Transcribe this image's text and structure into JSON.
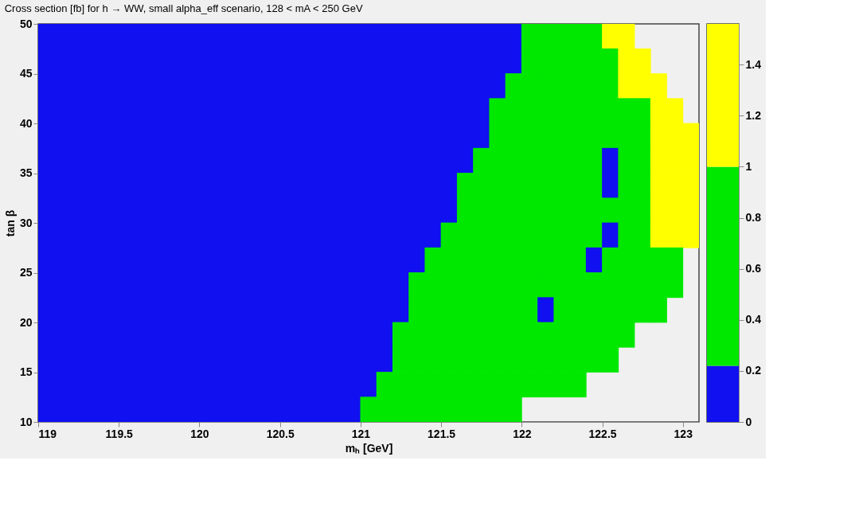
{
  "chart_data": [
    {
      "type": "scatter",
      "title": "Cross section [fb] for h → WW, small alpha_eff scenario, 128 < mA < 250 GeV",
      "xlabel": "mₕ [GeV]",
      "ylabel": "tan β",
      "marker": "square",
      "x": [
        119.05,
        119.15,
        119.25,
        119.35,
        119.45,
        119.55,
        119.65,
        119.75,
        119.85,
        119.95,
        120.05,
        120.15,
        120.25,
        120.35,
        120.45,
        120.55,
        120.65,
        120.75,
        120.85,
        120.95,
        121.05,
        121.15,
        121.25,
        121.35,
        121.45,
        121.55,
        121.65,
        121.75,
        121.85,
        121.95,
        122.05,
        122.15,
        122.25,
        122.35,
        122.45,
        122.55,
        122.65,
        122.75,
        122.85,
        122.95,
        123.05
      ],
      "series": [
        {
          "values": [
            48.75,
            48.75,
            48.75,
            48.75,
            48.75,
            48.75,
            48.75,
            48.75,
            48.75,
            48.75,
            48.75,
            48.75,
            48.75,
            48.75,
            48.75,
            48.75,
            48.75,
            48.75,
            48.75,
            48.75,
            48.75,
            48.75,
            48.75,
            48.75,
            48.75,
            48.75,
            48.75,
            48.75,
            48.75,
            48.75,
            48.75,
            48.75,
            48.75,
            48.75,
            48.75,
            48.75,
            48.75,
            null,
            null,
            null,
            null
          ],
          "colors": [
            "#1010f0",
            "#1010f0",
            "#1010f0",
            "#1010f0",
            "#1010f0",
            "#1010f0",
            "#1010f0",
            "#1010f0",
            "#1010f0",
            "#1010f0",
            "#1010f0",
            "#1010f0",
            "#1010f0",
            "#1010f0",
            "#1010f0",
            "#1010f0",
            "#1010f0",
            "#1010f0",
            "#1010f0",
            "#1010f0",
            "#1010f0",
            "#1010f0",
            "#1010f0",
            "#1010f0",
            "#1010f0",
            "#1010f0",
            "#1010f0",
            "#1010f0",
            "#1010f0",
            "#1010f0",
            "#00e800",
            "#00e800",
            "#00e800",
            "#00e800",
            "#00e800",
            "#ffff00",
            "#ffff00",
            null,
            null,
            null,
            null
          ]
        },
        {
          "values": [
            46.25,
            46.25,
            46.25,
            46.25,
            46.25,
            46.25,
            46.25,
            46.25,
            46.25,
            46.25,
            46.25,
            46.25,
            46.25,
            46.25,
            46.25,
            46.25,
            46.25,
            46.25,
            46.25,
            46.25,
            46.25,
            46.25,
            46.25,
            46.25,
            46.25,
            46.25,
            46.25,
            46.25,
            46.25,
            46.25,
            46.25,
            46.25,
            46.25,
            46.25,
            46.25,
            46.25,
            46.25,
            46.25,
            null,
            null,
            null
          ],
          "colors": [
            "#1010f0",
            "#1010f0",
            "#1010f0",
            "#1010f0",
            "#1010f0",
            "#1010f0",
            "#1010f0",
            "#1010f0",
            "#1010f0",
            "#1010f0",
            "#1010f0",
            "#1010f0",
            "#1010f0",
            "#1010f0",
            "#1010f0",
            "#1010f0",
            "#1010f0",
            "#1010f0",
            "#1010f0",
            "#1010f0",
            "#1010f0",
            "#1010f0",
            "#1010f0",
            "#1010f0",
            "#1010f0",
            "#1010f0",
            "#1010f0",
            "#1010f0",
            "#1010f0",
            "#1010f0",
            "#00e800",
            "#00e800",
            "#00e800",
            "#00e800",
            "#00e800",
            "#00e800",
            "#ffff00",
            "#ffff00",
            null,
            null,
            null
          ]
        },
        {
          "values": [
            43.75,
            43.75,
            43.75,
            43.75,
            43.75,
            43.75,
            43.75,
            43.75,
            43.75,
            43.75,
            43.75,
            43.75,
            43.75,
            43.75,
            43.75,
            43.75,
            43.75,
            43.75,
            43.75,
            43.75,
            43.75,
            43.75,
            43.75,
            43.75,
            43.75,
            43.75,
            43.75,
            43.75,
            43.75,
            43.75,
            43.75,
            43.75,
            43.75,
            43.75,
            43.75,
            43.75,
            43.75,
            43.75,
            43.75,
            null,
            null
          ],
          "colors": [
            "#1010f0",
            "#1010f0",
            "#1010f0",
            "#1010f0",
            "#1010f0",
            "#1010f0",
            "#1010f0",
            "#1010f0",
            "#1010f0",
            "#1010f0",
            "#1010f0",
            "#1010f0",
            "#1010f0",
            "#1010f0",
            "#1010f0",
            "#1010f0",
            "#1010f0",
            "#1010f0",
            "#1010f0",
            "#1010f0",
            "#1010f0",
            "#1010f0",
            "#1010f0",
            "#1010f0",
            "#1010f0",
            "#1010f0",
            "#1010f0",
            "#1010f0",
            "#1010f0",
            "#00e800",
            "#00e800",
            "#00e800",
            "#00e800",
            "#00e800",
            "#00e800",
            "#00e800",
            "#ffff00",
            "#ffff00",
            "#ffff00",
            null,
            null
          ]
        },
        {
          "values": [
            41.25,
            41.25,
            41.25,
            41.25,
            41.25,
            41.25,
            41.25,
            41.25,
            41.25,
            41.25,
            41.25,
            41.25,
            41.25,
            41.25,
            41.25,
            41.25,
            41.25,
            41.25,
            41.25,
            41.25,
            41.25,
            41.25,
            41.25,
            41.25,
            41.25,
            41.25,
            41.25,
            41.25,
            41.25,
            41.25,
            41.25,
            41.25,
            41.25,
            41.25,
            41.25,
            41.25,
            41.25,
            41.25,
            41.25,
            41.25,
            null
          ],
          "colors": [
            "#1010f0",
            "#1010f0",
            "#1010f0",
            "#1010f0",
            "#1010f0",
            "#1010f0",
            "#1010f0",
            "#1010f0",
            "#1010f0",
            "#1010f0",
            "#1010f0",
            "#1010f0",
            "#1010f0",
            "#1010f0",
            "#1010f0",
            "#1010f0",
            "#1010f0",
            "#1010f0",
            "#1010f0",
            "#1010f0",
            "#1010f0",
            "#1010f0",
            "#1010f0",
            "#1010f0",
            "#1010f0",
            "#1010f0",
            "#1010f0",
            "#1010f0",
            "#00e800",
            "#00e800",
            "#00e800",
            "#00e800",
            "#00e800",
            "#00e800",
            "#00e800",
            "#00e800",
            "#00e800",
            "#00e800",
            "#ffff00",
            "#ffff00",
            null
          ]
        },
        {
          "values": [
            38.75,
            38.75,
            38.75,
            38.75,
            38.75,
            38.75,
            38.75,
            38.75,
            38.75,
            38.75,
            38.75,
            38.75,
            38.75,
            38.75,
            38.75,
            38.75,
            38.75,
            38.75,
            38.75,
            38.75,
            38.75,
            38.75,
            38.75,
            38.75,
            38.75,
            38.75,
            38.75,
            38.75,
            38.75,
            38.75,
            38.75,
            38.75,
            38.75,
            38.75,
            38.75,
            38.75,
            38.75,
            38.75,
            38.75,
            38.75,
            38.75
          ],
          "colors": [
            "#1010f0",
            "#1010f0",
            "#1010f0",
            "#1010f0",
            "#1010f0",
            "#1010f0",
            "#1010f0",
            "#1010f0",
            "#1010f0",
            "#1010f0",
            "#1010f0",
            "#1010f0",
            "#1010f0",
            "#1010f0",
            "#1010f0",
            "#1010f0",
            "#1010f0",
            "#1010f0",
            "#1010f0",
            "#1010f0",
            "#1010f0",
            "#1010f0",
            "#1010f0",
            "#1010f0",
            "#1010f0",
            "#1010f0",
            "#1010f0",
            "#1010f0",
            "#00e800",
            "#00e800",
            "#00e800",
            "#00e800",
            "#00e800",
            "#00e800",
            "#00e800",
            "#00e800",
            "#00e800",
            "#00e800",
            "#ffff00",
            "#ffff00",
            "#ffff00"
          ]
        },
        {
          "values": [
            36.25,
            36.25,
            36.25,
            36.25,
            36.25,
            36.25,
            36.25,
            36.25,
            36.25,
            36.25,
            36.25,
            36.25,
            36.25,
            36.25,
            36.25,
            36.25,
            36.25,
            36.25,
            36.25,
            36.25,
            36.25,
            36.25,
            36.25,
            36.25,
            36.25,
            36.25,
            36.25,
            36.25,
            36.25,
            36.25,
            36.25,
            36.25,
            36.25,
            36.25,
            36.25,
            36.25,
            36.25,
            36.25,
            36.25,
            36.25,
            36.25
          ],
          "colors": [
            "#1010f0",
            "#1010f0",
            "#1010f0",
            "#1010f0",
            "#1010f0",
            "#1010f0",
            "#1010f0",
            "#1010f0",
            "#1010f0",
            "#1010f0",
            "#1010f0",
            "#1010f0",
            "#1010f0",
            "#1010f0",
            "#1010f0",
            "#1010f0",
            "#1010f0",
            "#1010f0",
            "#1010f0",
            "#1010f0",
            "#1010f0",
            "#1010f0",
            "#1010f0",
            "#1010f0",
            "#1010f0",
            "#1010f0",
            "#1010f0",
            "#00e800",
            "#00e800",
            "#00e800",
            "#00e800",
            "#00e800",
            "#00e800",
            "#00e800",
            "#00e800",
            "#1010f0",
            "#00e800",
            "#00e800",
            "#ffff00",
            "#ffff00",
            "#ffff00"
          ]
        },
        {
          "values": [
            33.75,
            33.75,
            33.75,
            33.75,
            33.75,
            33.75,
            33.75,
            33.75,
            33.75,
            33.75,
            33.75,
            33.75,
            33.75,
            33.75,
            33.75,
            33.75,
            33.75,
            33.75,
            33.75,
            33.75,
            33.75,
            33.75,
            33.75,
            33.75,
            33.75,
            33.75,
            33.75,
            33.75,
            33.75,
            33.75,
            33.75,
            33.75,
            33.75,
            33.75,
            33.75,
            33.75,
            33.75,
            33.75,
            33.75,
            33.75,
            33.75
          ],
          "colors": [
            "#1010f0",
            "#1010f0",
            "#1010f0",
            "#1010f0",
            "#1010f0",
            "#1010f0",
            "#1010f0",
            "#1010f0",
            "#1010f0",
            "#1010f0",
            "#1010f0",
            "#1010f0",
            "#1010f0",
            "#1010f0",
            "#1010f0",
            "#1010f0",
            "#1010f0",
            "#1010f0",
            "#1010f0",
            "#1010f0",
            "#1010f0",
            "#1010f0",
            "#1010f0",
            "#1010f0",
            "#1010f0",
            "#1010f0",
            "#00e800",
            "#00e800",
            "#00e800",
            "#00e800",
            "#00e800",
            "#00e800",
            "#00e800",
            "#00e800",
            "#00e800",
            "#1010f0",
            "#00e800",
            "#00e800",
            "#ffff00",
            "#ffff00",
            "#ffff00"
          ]
        },
        {
          "values": [
            31.25,
            31.25,
            31.25,
            31.25,
            31.25,
            31.25,
            31.25,
            31.25,
            31.25,
            31.25,
            31.25,
            31.25,
            31.25,
            31.25,
            31.25,
            31.25,
            31.25,
            31.25,
            31.25,
            31.25,
            31.25,
            31.25,
            31.25,
            31.25,
            31.25,
            31.25,
            31.25,
            31.25,
            31.25,
            31.25,
            31.25,
            31.25,
            31.25,
            31.25,
            31.25,
            31.25,
            31.25,
            31.25,
            31.25,
            31.25,
            31.25
          ],
          "colors": [
            "#1010f0",
            "#1010f0",
            "#1010f0",
            "#1010f0",
            "#1010f0",
            "#1010f0",
            "#1010f0",
            "#1010f0",
            "#1010f0",
            "#1010f0",
            "#1010f0",
            "#1010f0",
            "#1010f0",
            "#1010f0",
            "#1010f0",
            "#1010f0",
            "#1010f0",
            "#1010f0",
            "#1010f0",
            "#1010f0",
            "#1010f0",
            "#1010f0",
            "#1010f0",
            "#1010f0",
            "#1010f0",
            "#1010f0",
            "#00e800",
            "#00e800",
            "#00e800",
            "#00e800",
            "#00e800",
            "#00e800",
            "#00e800",
            "#00e800",
            "#00e800",
            "#00e800",
            "#00e800",
            "#00e800",
            "#ffff00",
            "#ffff00",
            "#ffff00"
          ]
        },
        {
          "values": [
            28.75,
            28.75,
            28.75,
            28.75,
            28.75,
            28.75,
            28.75,
            28.75,
            28.75,
            28.75,
            28.75,
            28.75,
            28.75,
            28.75,
            28.75,
            28.75,
            28.75,
            28.75,
            28.75,
            28.75,
            28.75,
            28.75,
            28.75,
            28.75,
            28.75,
            28.75,
            28.75,
            28.75,
            28.75,
            28.75,
            28.75,
            28.75,
            28.75,
            28.75,
            28.75,
            28.75,
            28.75,
            28.75,
            28.75,
            28.75,
            28.75
          ],
          "colors": [
            "#1010f0",
            "#1010f0",
            "#1010f0",
            "#1010f0",
            "#1010f0",
            "#1010f0",
            "#1010f0",
            "#1010f0",
            "#1010f0",
            "#1010f0",
            "#1010f0",
            "#1010f0",
            "#1010f0",
            "#1010f0",
            "#1010f0",
            "#1010f0",
            "#1010f0",
            "#1010f0",
            "#1010f0",
            "#1010f0",
            "#1010f0",
            "#1010f0",
            "#1010f0",
            "#1010f0",
            "#1010f0",
            "#00e800",
            "#00e800",
            "#00e800",
            "#00e800",
            "#00e800",
            "#00e800",
            "#00e800",
            "#00e800",
            "#00e800",
            "#00e800",
            "#1010f0",
            "#00e800",
            "#00e800",
            "#ffff00",
            "#ffff00",
            "#ffff00"
          ]
        },
        {
          "values": [
            26.25,
            26.25,
            26.25,
            26.25,
            26.25,
            26.25,
            26.25,
            26.25,
            26.25,
            26.25,
            26.25,
            26.25,
            26.25,
            26.25,
            26.25,
            26.25,
            26.25,
            26.25,
            26.25,
            26.25,
            26.25,
            26.25,
            26.25,
            26.25,
            26.25,
            26.25,
            26.25,
            26.25,
            26.25,
            26.25,
            26.25,
            26.25,
            26.25,
            26.25,
            26.25,
            26.25,
            26.25,
            26.25,
            26.25,
            26.25,
            null
          ],
          "colors": [
            "#1010f0",
            "#1010f0",
            "#1010f0",
            "#1010f0",
            "#1010f0",
            "#1010f0",
            "#1010f0",
            "#1010f0",
            "#1010f0",
            "#1010f0",
            "#1010f0",
            "#1010f0",
            "#1010f0",
            "#1010f0",
            "#1010f0",
            "#1010f0",
            "#1010f0",
            "#1010f0",
            "#1010f0",
            "#1010f0",
            "#1010f0",
            "#1010f0",
            "#1010f0",
            "#1010f0",
            "#00e800",
            "#00e800",
            "#00e800",
            "#00e800",
            "#00e800",
            "#00e800",
            "#00e800",
            "#00e800",
            "#00e800",
            "#00e800",
            "#1010f0",
            "#00e800",
            "#00e800",
            "#00e800",
            "#00e800",
            "#00e800",
            null
          ]
        },
        {
          "values": [
            23.75,
            23.75,
            23.75,
            23.75,
            23.75,
            23.75,
            23.75,
            23.75,
            23.75,
            23.75,
            23.75,
            23.75,
            23.75,
            23.75,
            23.75,
            23.75,
            23.75,
            23.75,
            23.75,
            23.75,
            23.75,
            23.75,
            23.75,
            23.75,
            23.75,
            23.75,
            23.75,
            23.75,
            23.75,
            23.75,
            23.75,
            23.75,
            23.75,
            23.75,
            23.75,
            23.75,
            23.75,
            23.75,
            23.75,
            23.75,
            null
          ],
          "colors": [
            "#1010f0",
            "#1010f0",
            "#1010f0",
            "#1010f0",
            "#1010f0",
            "#1010f0",
            "#1010f0",
            "#1010f0",
            "#1010f0",
            "#1010f0",
            "#1010f0",
            "#1010f0",
            "#1010f0",
            "#1010f0",
            "#1010f0",
            "#1010f0",
            "#1010f0",
            "#1010f0",
            "#1010f0",
            "#1010f0",
            "#1010f0",
            "#1010f0",
            "#1010f0",
            "#00e800",
            "#00e800",
            "#00e800",
            "#00e800",
            "#00e800",
            "#00e800",
            "#00e800",
            "#00e800",
            "#00e800",
            "#00e800",
            "#00e800",
            "#00e800",
            "#00e800",
            "#00e800",
            "#00e800",
            "#00e800",
            "#00e800",
            null
          ]
        },
        {
          "values": [
            21.25,
            21.25,
            21.25,
            21.25,
            21.25,
            21.25,
            21.25,
            21.25,
            21.25,
            21.25,
            21.25,
            21.25,
            21.25,
            21.25,
            21.25,
            21.25,
            21.25,
            21.25,
            21.25,
            21.25,
            21.25,
            21.25,
            21.25,
            21.25,
            21.25,
            21.25,
            21.25,
            21.25,
            21.25,
            21.25,
            21.25,
            21.25,
            21.25,
            21.25,
            21.25,
            21.25,
            21.25,
            21.25,
            21.25,
            null,
            null
          ],
          "colors": [
            "#1010f0",
            "#1010f0",
            "#1010f0",
            "#1010f0",
            "#1010f0",
            "#1010f0",
            "#1010f0",
            "#1010f0",
            "#1010f0",
            "#1010f0",
            "#1010f0",
            "#1010f0",
            "#1010f0",
            "#1010f0",
            "#1010f0",
            "#1010f0",
            "#1010f0",
            "#1010f0",
            "#1010f0",
            "#1010f0",
            "#1010f0",
            "#1010f0",
            "#1010f0",
            "#00e800",
            "#00e800",
            "#00e800",
            "#00e800",
            "#00e800",
            "#00e800",
            "#00e800",
            "#00e800",
            "#1010f0",
            "#00e800",
            "#00e800",
            "#00e800",
            "#00e800",
            "#00e800",
            "#00e800",
            "#00e800",
            null,
            null
          ]
        },
        {
          "values": [
            18.75,
            18.75,
            18.75,
            18.75,
            18.75,
            18.75,
            18.75,
            18.75,
            18.75,
            18.75,
            18.75,
            18.75,
            18.75,
            18.75,
            18.75,
            18.75,
            18.75,
            18.75,
            18.75,
            18.75,
            18.75,
            18.75,
            18.75,
            18.75,
            18.75,
            18.75,
            18.75,
            18.75,
            18.75,
            18.75,
            18.75,
            18.75,
            18.75,
            18.75,
            18.75,
            18.75,
            18.75,
            null,
            null,
            null,
            null
          ],
          "colors": [
            "#1010f0",
            "#1010f0",
            "#1010f0",
            "#1010f0",
            "#1010f0",
            "#1010f0",
            "#1010f0",
            "#1010f0",
            "#1010f0",
            "#1010f0",
            "#1010f0",
            "#1010f0",
            "#1010f0",
            "#1010f0",
            "#1010f0",
            "#1010f0",
            "#1010f0",
            "#1010f0",
            "#1010f0",
            "#1010f0",
            "#1010f0",
            "#1010f0",
            "#00e800",
            "#00e800",
            "#00e800",
            "#00e800",
            "#00e800",
            "#00e800",
            "#00e800",
            "#00e800",
            "#00e800",
            "#00e800",
            "#00e800",
            "#00e800",
            "#00e800",
            "#00e800",
            "#00e800",
            null,
            null,
            null,
            null
          ]
        },
        {
          "values": [
            16.25,
            16.25,
            16.25,
            16.25,
            16.25,
            16.25,
            16.25,
            16.25,
            16.25,
            16.25,
            16.25,
            16.25,
            16.25,
            16.25,
            16.25,
            16.25,
            16.25,
            16.25,
            16.25,
            16.25,
            16.25,
            16.25,
            16.25,
            16.25,
            16.25,
            16.25,
            16.25,
            16.25,
            16.25,
            16.25,
            16.25,
            16.25,
            16.25,
            16.25,
            16.25,
            16.25,
            null,
            null,
            null,
            null,
            null
          ],
          "colors": [
            "#1010f0",
            "#1010f0",
            "#1010f0",
            "#1010f0",
            "#1010f0",
            "#1010f0",
            "#1010f0",
            "#1010f0",
            "#1010f0",
            "#1010f0",
            "#1010f0",
            "#1010f0",
            "#1010f0",
            "#1010f0",
            "#1010f0",
            "#1010f0",
            "#1010f0",
            "#1010f0",
            "#1010f0",
            "#1010f0",
            "#1010f0",
            "#1010f0",
            "#00e800",
            "#00e800",
            "#00e800",
            "#00e800",
            "#00e800",
            "#00e800",
            "#00e800",
            "#00e800",
            "#00e800",
            "#00e800",
            "#00e800",
            "#00e800",
            "#00e800",
            "#00e800",
            null,
            null,
            null,
            null,
            null
          ]
        },
        {
          "values": [
            13.75,
            13.75,
            13.75,
            13.75,
            13.75,
            13.75,
            13.75,
            13.75,
            13.75,
            13.75,
            13.75,
            13.75,
            13.75,
            13.75,
            13.75,
            13.75,
            13.75,
            13.75,
            13.75,
            13.75,
            13.75,
            13.75,
            13.75,
            13.75,
            13.75,
            13.75,
            13.75,
            13.75,
            13.75,
            13.75,
            13.75,
            13.75,
            13.75,
            13.75,
            null,
            null,
            null,
            null,
            null,
            null,
            null
          ],
          "colors": [
            "#1010f0",
            "#1010f0",
            "#1010f0",
            "#1010f0",
            "#1010f0",
            "#1010f0",
            "#1010f0",
            "#1010f0",
            "#1010f0",
            "#1010f0",
            "#1010f0",
            "#1010f0",
            "#1010f0",
            "#1010f0",
            "#1010f0",
            "#1010f0",
            "#1010f0",
            "#1010f0",
            "#1010f0",
            "#1010f0",
            "#1010f0",
            "#00e800",
            "#00e800",
            "#00e800",
            "#00e800",
            "#00e800",
            "#00e800",
            "#00e800",
            "#00e800",
            "#00e800",
            "#00e800",
            "#00e800",
            "#00e800",
            "#00e800",
            null,
            null,
            null,
            null,
            null,
            null,
            null
          ]
        },
        {
          "values": [
            11.25,
            11.25,
            11.25,
            11.25,
            11.25,
            11.25,
            11.25,
            11.25,
            11.25,
            11.25,
            11.25,
            11.25,
            11.25,
            11.25,
            11.25,
            11.25,
            11.25,
            11.25,
            11.25,
            11.25,
            11.25,
            11.25,
            11.25,
            11.25,
            11.25,
            11.25,
            11.25,
            11.25,
            11.25,
            11.25,
            null,
            null,
            null,
            null,
            null,
            null,
            null,
            null,
            null,
            null,
            null
          ],
          "colors": [
            "#1010f0",
            "#1010f0",
            "#1010f0",
            "#1010f0",
            "#1010f0",
            "#1010f0",
            "#1010f0",
            "#1010f0",
            "#1010f0",
            "#1010f0",
            "#1010f0",
            "#1010f0",
            "#1010f0",
            "#1010f0",
            "#1010f0",
            "#1010f0",
            "#1010f0",
            "#1010f0",
            "#1010f0",
            "#1010f0",
            "#00e800",
            "#00e800",
            "#00e800",
            "#00e800",
            "#00e800",
            "#00e800",
            "#00e800",
            "#00e800",
            "#00e800",
            "#00e800",
            null,
            null,
            null,
            null,
            null,
            null,
            null,
            null,
            null,
            null,
            null
          ]
        }
      ],
      "xlim": [
        119,
        123.1
      ],
      "ylim": [
        10,
        50
      ],
      "xticks": [
        119,
        119.5,
        120,
        120.5,
        121,
        121.5,
        122,
        122.5,
        123
      ],
      "yticks": [
        10,
        15,
        20,
        25,
        30,
        35,
        40,
        45,
        50
      ],
      "grid": false
    },
    {
      "type": "bar",
      "stacked": true,
      "categories": [
        null
      ],
      "tick_labels": "y",
      "series": [
        {
          "color": "#1010f0",
          "values": [
            0.22
          ]
        },
        {
          "color": "#00e800",
          "values": [
            0.78
          ]
        },
        {
          "color": "#ffff00",
          "values": [
            0.56
          ]
        }
      ],
      "ylim": [
        0,
        1.56
      ],
      "yticks": [
        0,
        0.2,
        0.4,
        0.6,
        0.8,
        1,
        1.2,
        1.4
      ],
      "grid": false
    }
  ]
}
